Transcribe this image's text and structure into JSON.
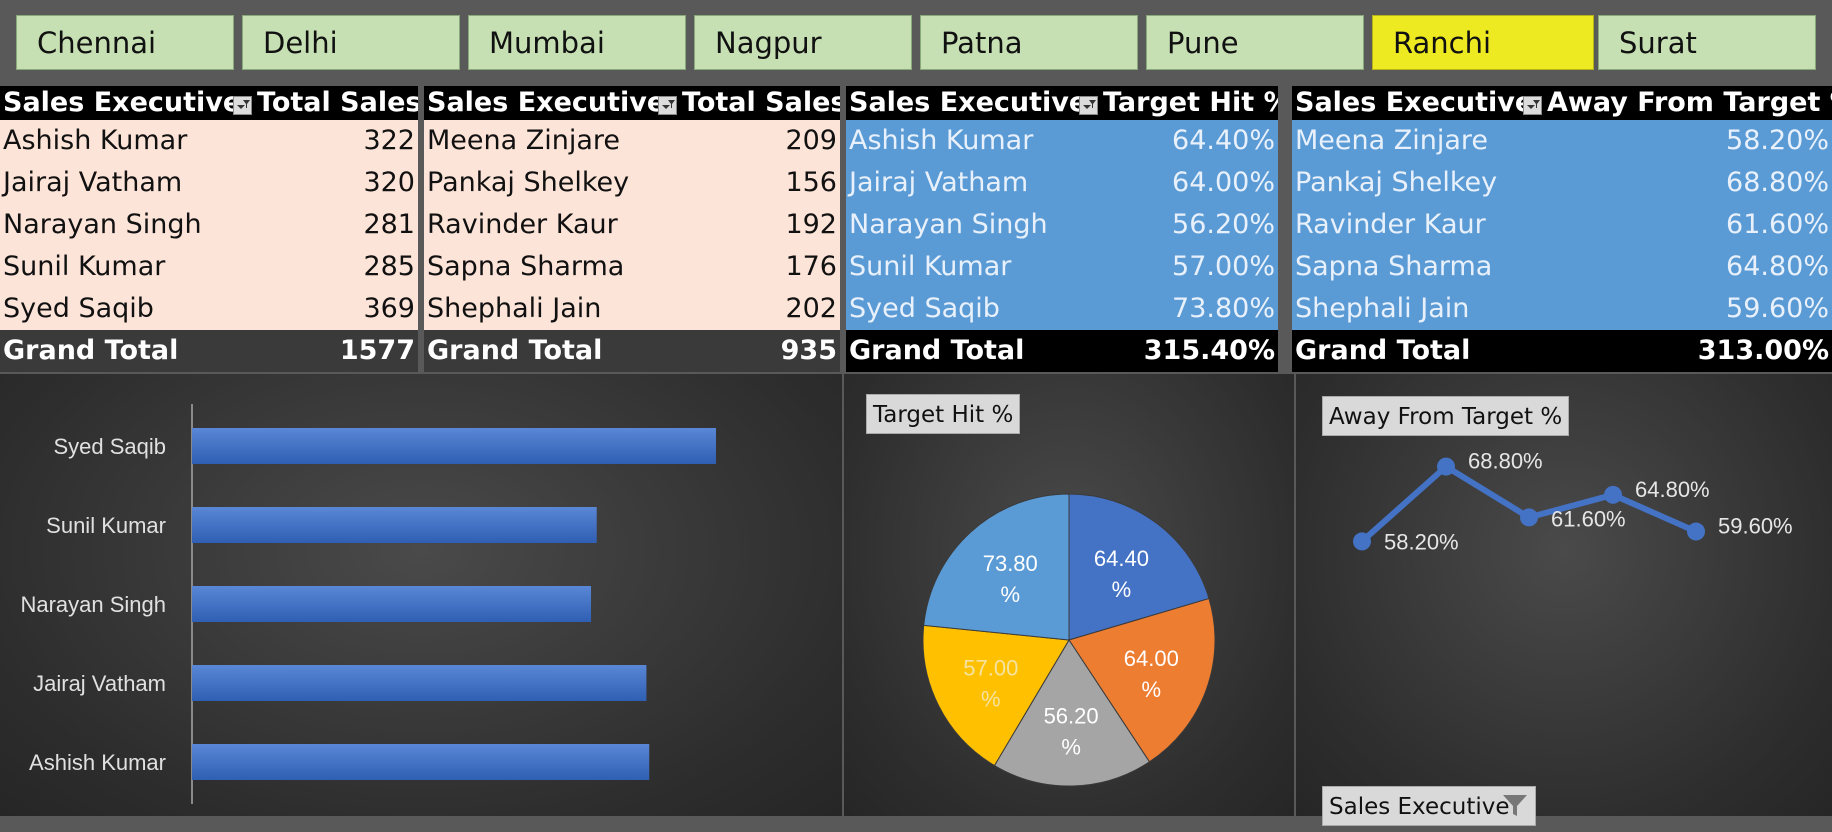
{
  "slicer": {
    "cities": [
      "Chennai",
      "Delhi",
      "Mumbai",
      "Nagpur",
      "Patna",
      "Pune",
      "Ranchi",
      "Surat"
    ],
    "selected": "Ranchi"
  },
  "pivot1": {
    "col1": "Sales Executive",
    "col2": "Total Sales",
    "rows": [
      {
        "name": "Ashish Kumar",
        "value": "322"
      },
      {
        "name": "Jairaj Vatham",
        "value": "320"
      },
      {
        "name": "Narayan Singh",
        "value": "281"
      },
      {
        "name": "Sunil Kumar",
        "value": "285"
      },
      {
        "name": "Syed Saqib",
        "value": "369"
      }
    ],
    "total_label": "Grand Total",
    "total": "1577"
  },
  "pivot2": {
    "col1": "Sales Executive",
    "col2": "Total Sales",
    "rows": [
      {
        "name": "Meena Zinjare",
        "value": "209"
      },
      {
        "name": "Pankaj Shelkey",
        "value": "156"
      },
      {
        "name": "Ravinder Kaur",
        "value": "192"
      },
      {
        "name": "Sapna Sharma",
        "value": "176"
      },
      {
        "name": "Shephali Jain",
        "value": "202"
      }
    ],
    "total_label": "Grand Total",
    "total": "935"
  },
  "pivot3": {
    "col1": "Sales Executive",
    "col2": "Target Hit %",
    "rows": [
      {
        "name": "Ashish Kumar",
        "value": "64.40%"
      },
      {
        "name": "Jairaj Vatham",
        "value": "64.00%"
      },
      {
        "name": "Narayan Singh",
        "value": "56.20%"
      },
      {
        "name": "Sunil Kumar",
        "value": "57.00%"
      },
      {
        "name": "Syed Saqib",
        "value": "73.80%"
      }
    ],
    "total_label": "Grand Total",
    "total": "315.40%"
  },
  "pivot4": {
    "col1": "Sales Executive",
    "col2": "Away From Target %",
    "rows": [
      {
        "name": "Meena Zinjare",
        "value": "58.20%"
      },
      {
        "name": "Pankaj Shelkey",
        "value": "68.80%"
      },
      {
        "name": "Ravinder Kaur",
        "value": "61.60%"
      },
      {
        "name": "Sapna Sharma",
        "value": "64.80%"
      },
      {
        "name": "Shephali Jain",
        "value": "59.60%"
      }
    ],
    "total_label": "Grand Total",
    "total": "313.00%"
  },
  "colors": {
    "bar": "#4472c4",
    "pie": [
      "#4472c4",
      "#ed7d31",
      "#a5a5a5",
      "#ffc000",
      "#5b9bd5"
    ],
    "line": "#4472c4",
    "slicer": "#c6e0b4",
    "slicer_selected": "#eeea22"
  },
  "chart_data": [
    {
      "type": "bar",
      "orientation": "horizontal",
      "categories": [
        "Ashish Kumar",
        "Jairaj Vatham",
        "Narayan Singh",
        "Sunil Kumar",
        "Syed Saqib"
      ],
      "values": [
        322,
        320,
        281,
        285,
        369
      ],
      "title": "",
      "xlabel": "",
      "ylabel": ""
    },
    {
      "type": "pie",
      "title": "Target Hit %",
      "categories": [
        "Ashish Kumar",
        "Jairaj Vatham",
        "Narayan Singh",
        "Sunil Kumar",
        "Syed Saqib"
      ],
      "values": [
        64.4,
        64.0,
        56.2,
        57.0,
        73.8
      ],
      "labels": [
        "64.40 %",
        "64.00 %",
        "56.20 %",
        "57.00 %",
        "73.80 %"
      ]
    },
    {
      "type": "line",
      "title": "Away From Target %",
      "categories": [
        "Meena Zinjare",
        "Pankaj Shelkey",
        "Ravinder Kaur",
        "Sapna Sharma",
        "Shephali Jain"
      ],
      "values": [
        58.2,
        68.8,
        61.6,
        64.8,
        59.6
      ],
      "labels": [
        "58.20%",
        "68.80%",
        "61.60%",
        "64.80%",
        "59.60%"
      ],
      "legend_filter_label": "Sales Executive"
    }
  ]
}
